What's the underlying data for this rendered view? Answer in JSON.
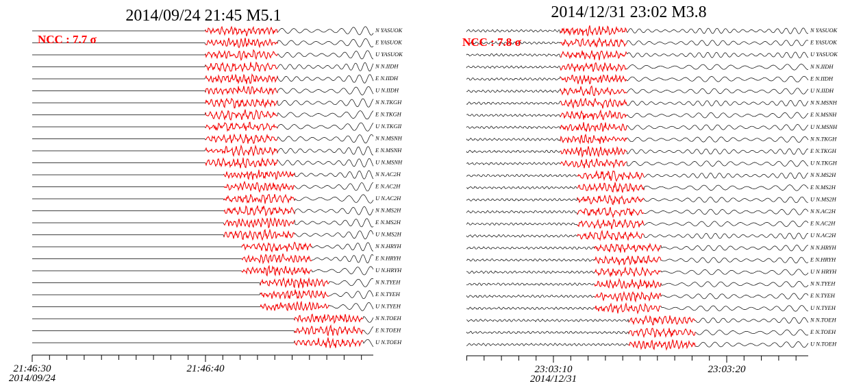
{
  "panels": [
    {
      "title": "2014/09/24 21:45 M5.1",
      "ncc": "NCC : 7.7 σ",
      "channels": [
        "N YASUOK",
        "E YASUOK",
        "U YASUOK",
        "N N.IIDH",
        "E N.IIDH",
        "U N.IIDH",
        "N N.TKGH",
        "E N.TKGH",
        "U N.TKGII",
        "N N.MSNH",
        "E N.MSNH",
        "U N.MSNH",
        "N N.AC2H",
        "E N.AC2H",
        "U N.AC2H",
        "N N.MS2H",
        "E N.MS2H",
        "U N.MS2H",
        "N N.HRYH",
        "E N.HRYH",
        "U N.HRYH",
        "N N.TYEH",
        "E N.TYEH",
        "U N.TYEH",
        "N N.TOEH",
        "E N.TOEH",
        "U N.TOEH"
      ],
      "time_ticks": [
        "21:46:30",
        "21:46:40"
      ],
      "date": "2014/09/24"
    },
    {
      "title": "2014/12/31 23:02 M3.8",
      "ncc": "NCC : 7.8 σ",
      "channels": [
        "N YASUOK",
        "E YASUOK",
        "U YASUOK",
        "N N.IIDH",
        "E N.IIDH",
        "U N.IIDH",
        "N N.MSNH",
        "E N.MSNH",
        "U N.MSNH",
        "N N.TKGH",
        "E N.TKGH",
        "U N.TKGH",
        "N N.MS2H",
        "E N.MS2H",
        "U N.MS2H",
        "N N.AC2H",
        "E N.AC2H",
        "U N.AC2H",
        "N N.HRYH",
        "E N.HRYH",
        "U N HRYH",
        "N N.TYEH",
        "E N.TYEH",
        "U N.TYEH",
        "N N.TOEH",
        "E N.TOEH",
        "U N.TOEH"
      ],
      "time_ticks": [
        "23:03:10",
        "23:03:20"
      ],
      "date": "2014/12/31"
    }
  ]
}
